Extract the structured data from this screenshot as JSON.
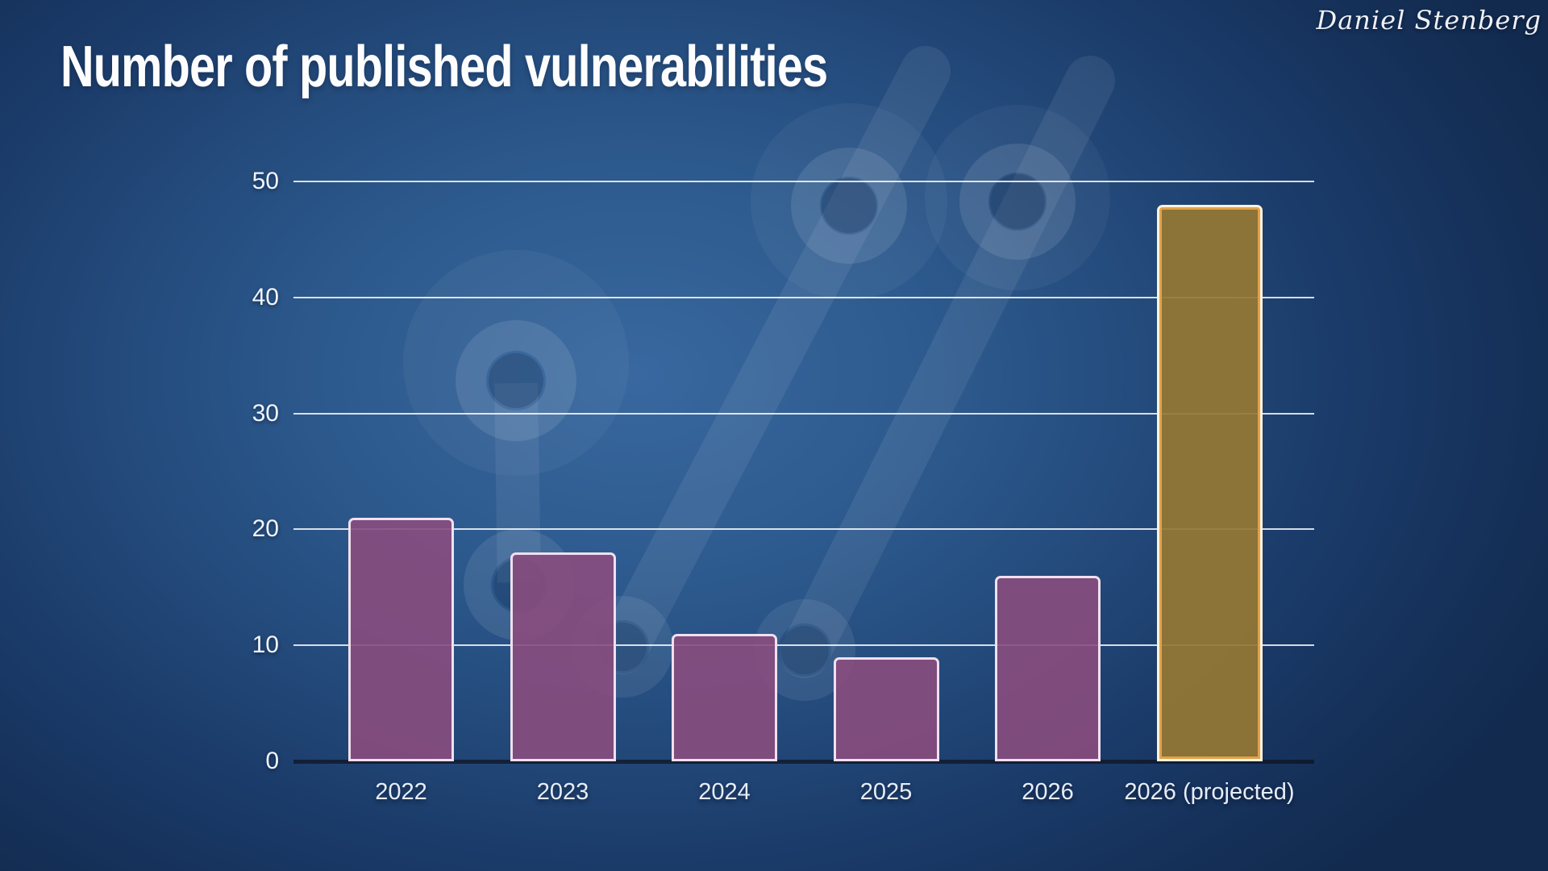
{
  "slide": {
    "title": "Number of published vulnerabilities",
    "author": "Daniel Stenberg"
  },
  "chart_data": {
    "type": "bar",
    "title": "Number of published vulnerabilities",
    "categories": [
      "2022",
      "2023",
      "2024",
      "2025",
      "2026",
      "2026 (projected)"
    ],
    "values": [
      21,
      18,
      11,
      9,
      16,
      48
    ],
    "highlight_index": 5,
    "xlabel": "",
    "ylabel": "",
    "yticks": [
      0,
      10,
      20,
      30,
      40,
      50
    ],
    "ylim": [
      0,
      50
    ],
    "grid": true,
    "legend": false,
    "style": {
      "bar_color": "#8a4d7e",
      "bar_border_color": "#f0e0ee",
      "highlight_bar_color": "#997933",
      "highlight_border_color": "#e9a94e",
      "gridline_color": "#ffffff",
      "background_color": "#27507f",
      "text_color": "#f1f5fb"
    }
  }
}
